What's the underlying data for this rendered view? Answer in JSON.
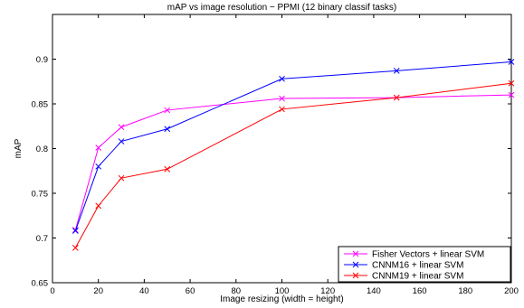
{
  "chart_data": {
    "type": "line",
    "title": "mAP vs image resolution − PPMI (12 binary classif tasks)",
    "xlabel": "Image resizing (width = height)",
    "ylabel": "mAP",
    "xlim": [
      0,
      200
    ],
    "ylim": [
      0.65,
      0.95
    ],
    "xticks": [
      0,
      20,
      40,
      60,
      80,
      100,
      120,
      140,
      160,
      180,
      200
    ],
    "yticks": [
      0.65,
      0.7,
      0.75,
      0.8,
      0.85,
      0.9
    ],
    "xtick_labels": [
      "0",
      "20",
      "40",
      "60",
      "80",
      "100",
      "120",
      "140",
      "160",
      "180",
      "200"
    ],
    "ytick_labels": [
      "0.65",
      "0.7",
      "0.75",
      "0.8",
      "0.85",
      "0.9"
    ],
    "grid": false,
    "legend_position": "bottom-right",
    "marker": "x",
    "series": [
      {
        "name": "Fisher Vectors + linear SVM",
        "color": "#ff00ff",
        "x": [
          10,
          20,
          30,
          50,
          100,
          150,
          200
        ],
        "y": [
          0.709,
          0.801,
          0.824,
          0.843,
          0.856,
          0.857,
          0.86
        ]
      },
      {
        "name": "CNNM16 + linear SVM",
        "color": "#0000ff",
        "x": [
          10,
          20,
          30,
          50,
          100,
          150,
          200
        ],
        "y": [
          0.708,
          0.78,
          0.808,
          0.822,
          0.878,
          0.887,
          0.897
        ]
      },
      {
        "name": "CNNM19 + linear SVM",
        "color": "#ff0000",
        "x": [
          10,
          20,
          30,
          50,
          100,
          150,
          200
        ],
        "y": [
          0.689,
          0.736,
          0.767,
          0.777,
          0.844,
          0.857,
          0.873
        ]
      }
    ]
  }
}
